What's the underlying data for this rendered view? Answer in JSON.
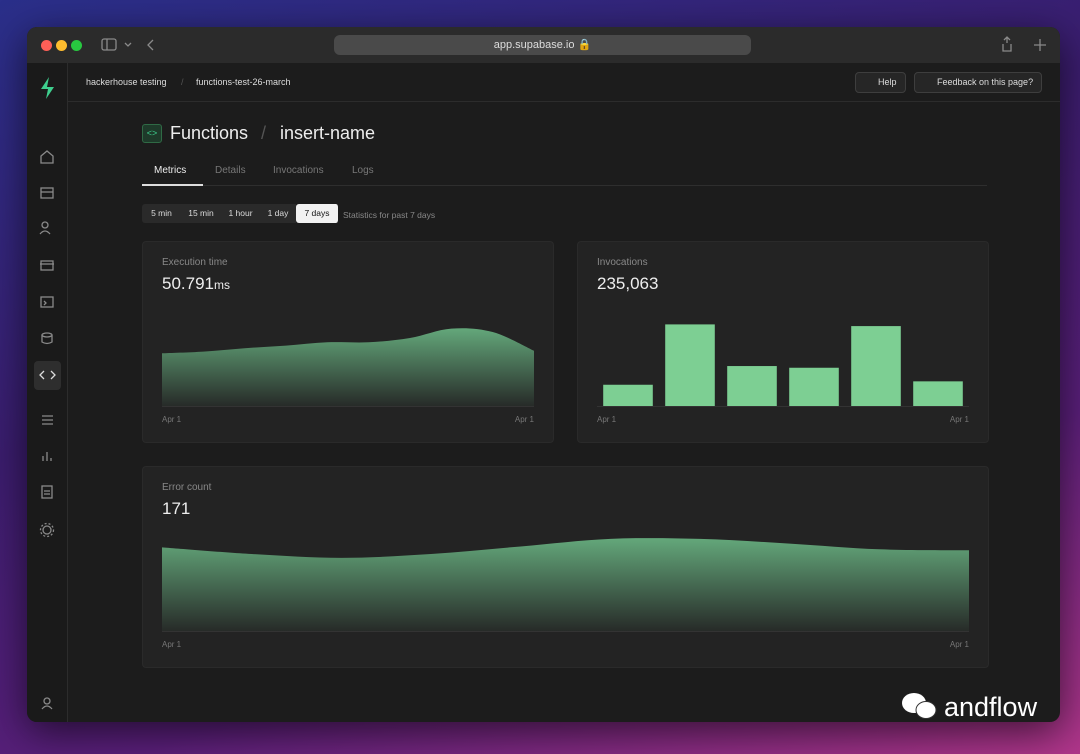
{
  "browser": {
    "url": "app.supabase.io"
  },
  "breadcrumbs": [
    "hackerhouse testing",
    "functions-test-26-march"
  ],
  "header_buttons": [
    "Help",
    "Feedback on this page?"
  ],
  "page": {
    "title": "Functions",
    "subtitle": "insert-name"
  },
  "tabs": {
    "items": [
      "Metrics",
      "Details",
      "Invocations",
      "Logs"
    ],
    "active": 0
  },
  "time_ranges": {
    "items": [
      "5 min",
      "15 min",
      "1 hour",
      "1 day",
      "7 days"
    ],
    "active": 4,
    "note": "Statistics for past 7 days"
  },
  "chart_data": [
    {
      "type": "area",
      "title": "Execution time",
      "value_label": "50.791",
      "unit": "ms",
      "x_labels": [
        "Apr 1",
        "Apr 1"
      ],
      "color": "#6fbf8a",
      "ylim": [
        0,
        100
      ],
      "values": [
        62,
        64,
        68,
        71,
        75,
        75,
        80,
        91,
        87,
        65
      ]
    },
    {
      "type": "bar",
      "title": "Invocations",
      "value_label": "235,063",
      "x_labels": [
        "Apr 1",
        "Apr 1"
      ],
      "color": "#7dcf93",
      "ylim": [
        0,
        100
      ],
      "values": [
        25,
        96,
        47,
        45,
        94,
        29
      ]
    },
    {
      "type": "area",
      "title": "Error count",
      "value_label": "171",
      "x_labels": [
        "Apr 1",
        "Apr 1"
      ],
      "color": "#6fbf8a",
      "ylim": [
        0,
        100
      ],
      "values": [
        88,
        81,
        77,
        81,
        89,
        97,
        97,
        92,
        86,
        85
      ]
    }
  ],
  "watermark": "andflow"
}
